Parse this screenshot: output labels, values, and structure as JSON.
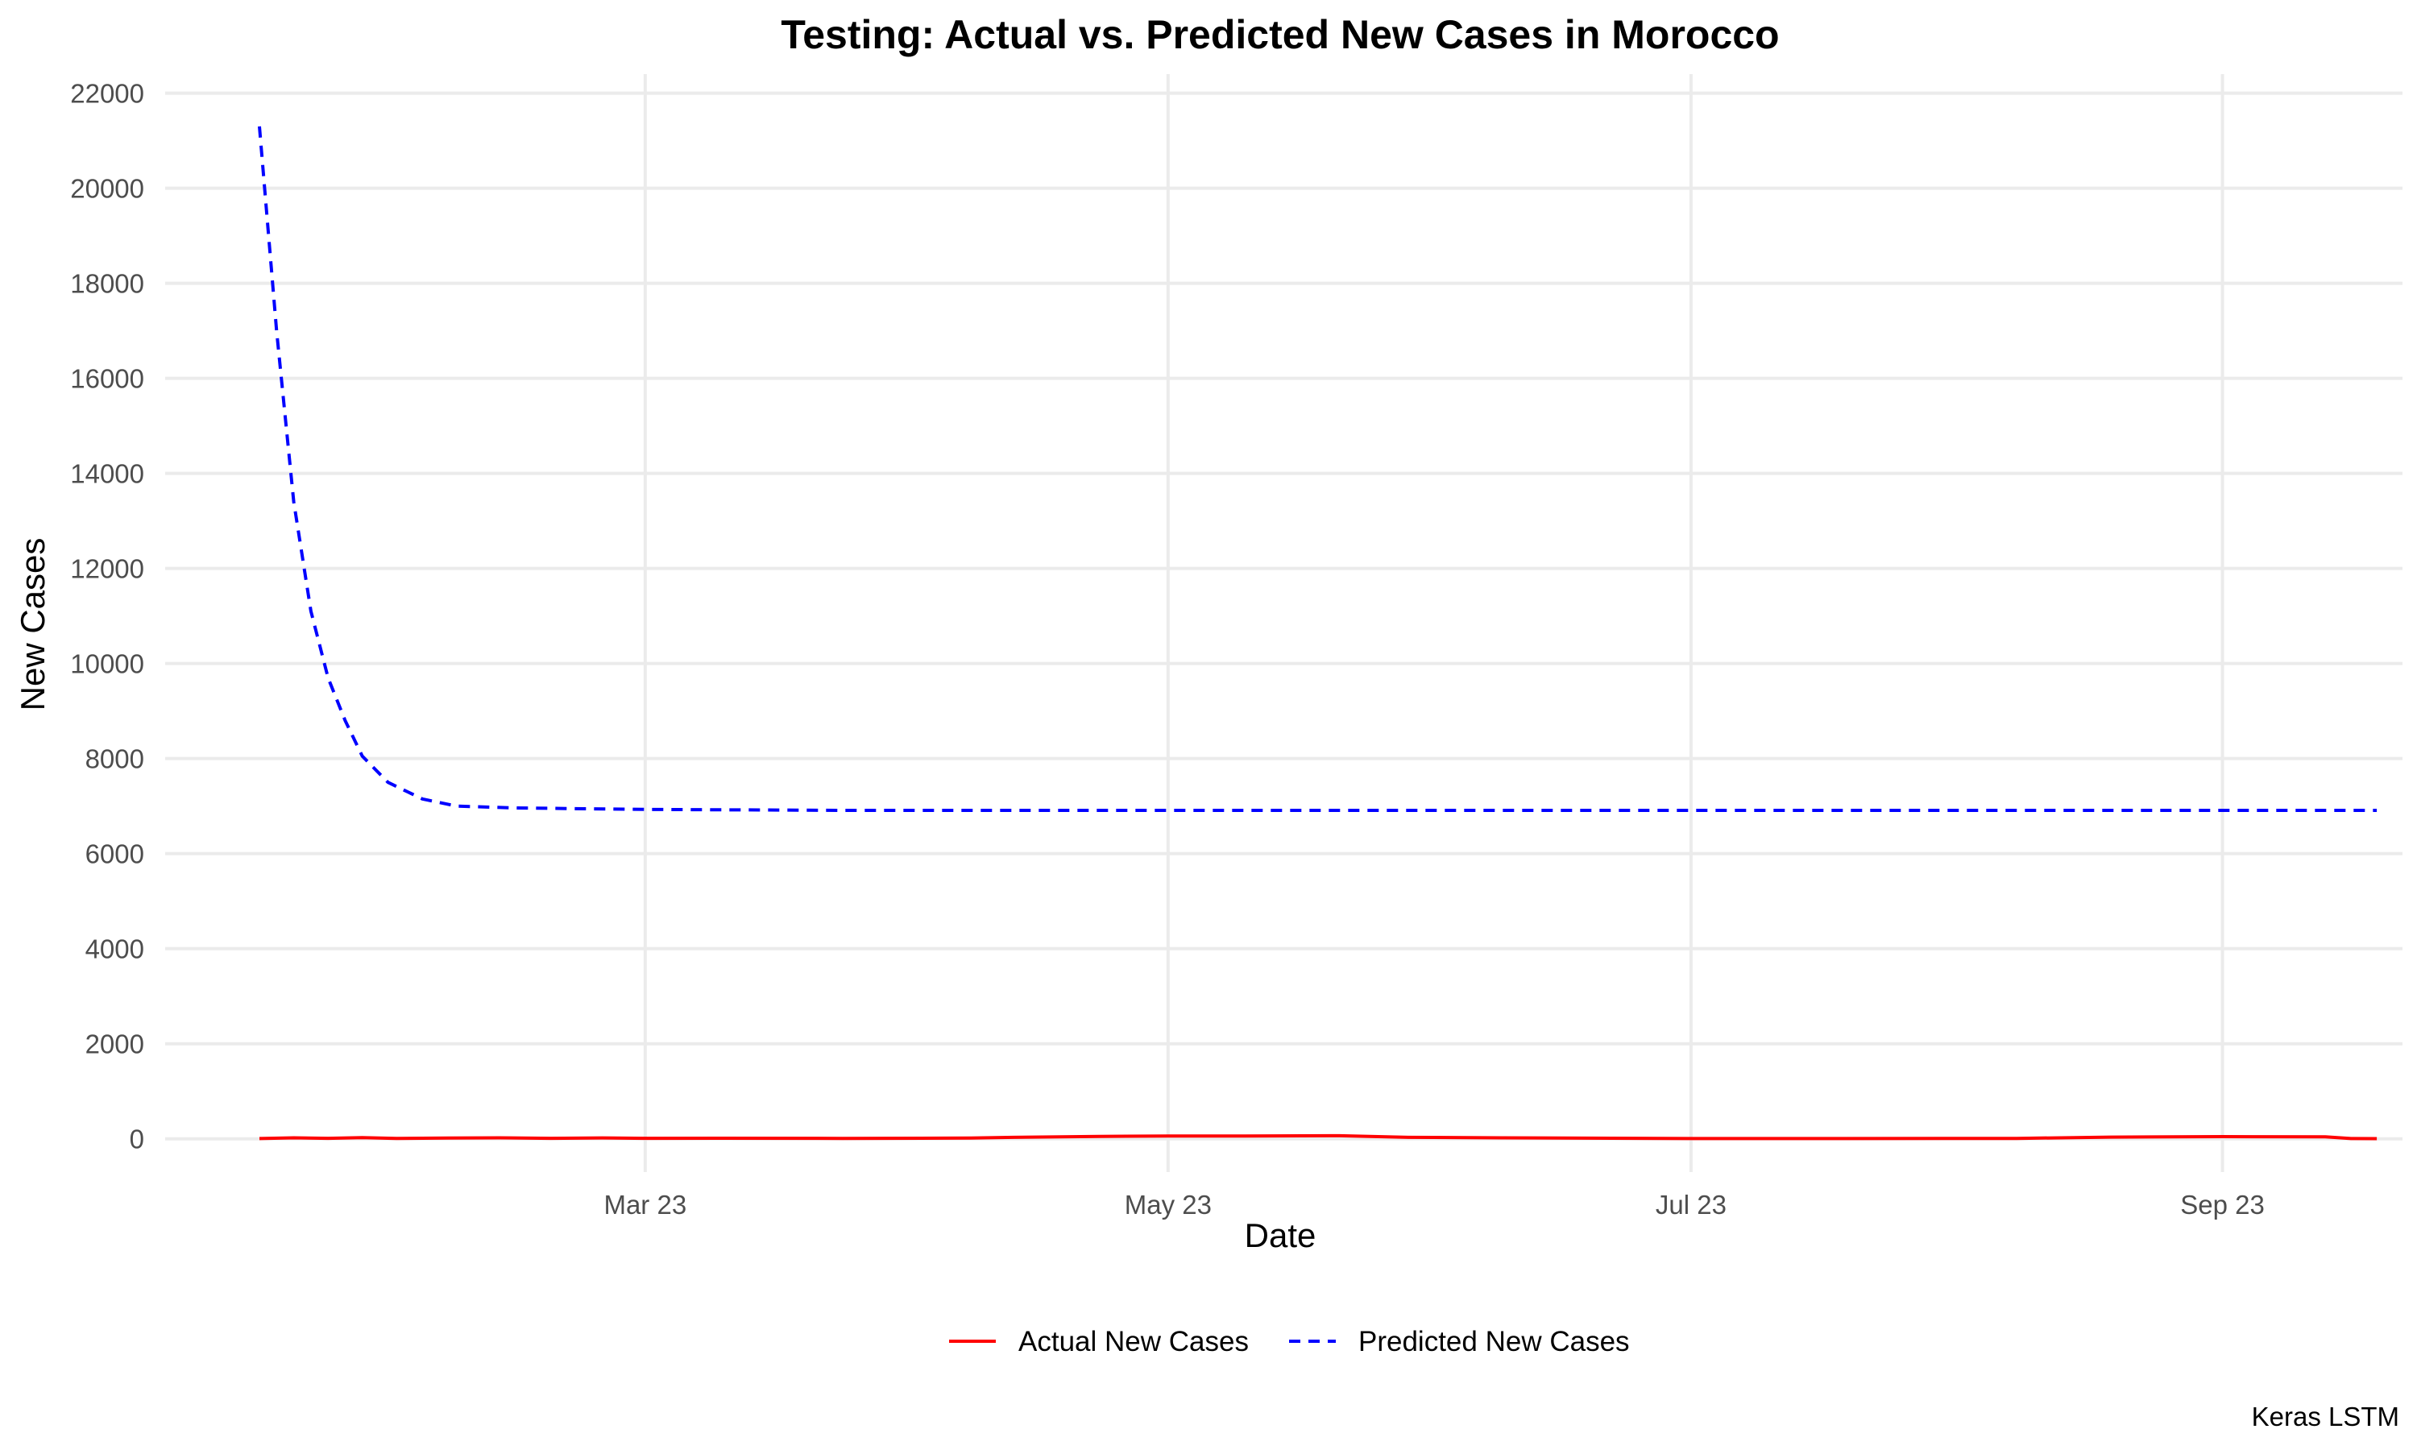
{
  "chart_data": {
    "type": "line",
    "title": "Testing: Actual vs. Predicted New Cases in Morocco",
    "xlabel": "Date",
    "ylabel": "New Cases",
    "caption": "Keras LSTM",
    "x_type": "date",
    "xlim": [
      "2023-01-26",
      "2023-10-14"
    ],
    "ylim": [
      -700,
      22400
    ],
    "x_ticks": [
      {
        "date": "2023-03-23",
        "label": "Mar 23"
      },
      {
        "date": "2023-05-23",
        "label": "May 23"
      },
      {
        "date": "2023-07-23",
        "label": "Jul 23"
      },
      {
        "date": "2023-09-23",
        "label": "Sep 23"
      }
    ],
    "y_ticks": [
      0,
      2000,
      4000,
      6000,
      8000,
      10000,
      12000,
      14000,
      16000,
      18000,
      20000,
      22000
    ],
    "grid": true,
    "legend_position": "bottom",
    "series": [
      {
        "name": "Actual New Cases",
        "color": "#ff0000",
        "dash": "solid",
        "points": [
          [
            "2023-02-06",
            5
          ],
          [
            "2023-02-10",
            20
          ],
          [
            "2023-02-14",
            10
          ],
          [
            "2023-02-18",
            25
          ],
          [
            "2023-02-22",
            8
          ],
          [
            "2023-02-28",
            15
          ],
          [
            "2023-03-06",
            20
          ],
          [
            "2023-03-12",
            10
          ],
          [
            "2023-03-18",
            18
          ],
          [
            "2023-03-23",
            10
          ],
          [
            "2023-04-01",
            12
          ],
          [
            "2023-04-15",
            8
          ],
          [
            "2023-04-30",
            15
          ],
          [
            "2023-05-05",
            30
          ],
          [
            "2023-05-15",
            50
          ],
          [
            "2023-05-23",
            60
          ],
          [
            "2023-06-01",
            60
          ],
          [
            "2023-06-12",
            65
          ],
          [
            "2023-06-20",
            30
          ],
          [
            "2023-07-01",
            20
          ],
          [
            "2023-07-23",
            5
          ],
          [
            "2023-08-10",
            5
          ],
          [
            "2023-08-30",
            8
          ],
          [
            "2023-09-10",
            35
          ],
          [
            "2023-09-23",
            45
          ],
          [
            "2023-10-05",
            40
          ],
          [
            "2023-10-08",
            5
          ],
          [
            "2023-10-11",
            3
          ]
        ]
      },
      {
        "name": "Predicted New Cases",
        "color": "#0000ff",
        "dash": "dashed",
        "points": [
          [
            "2023-02-06",
            21300
          ],
          [
            "2023-02-08",
            17000
          ],
          [
            "2023-02-10",
            13400
          ],
          [
            "2023-02-12",
            11100
          ],
          [
            "2023-02-14",
            9700
          ],
          [
            "2023-02-16",
            8800
          ],
          [
            "2023-02-18",
            8050
          ],
          [
            "2023-02-21",
            7500
          ],
          [
            "2023-02-25",
            7150
          ],
          [
            "2023-03-01",
            7000
          ],
          [
            "2023-03-08",
            6960
          ],
          [
            "2023-03-23",
            6930
          ],
          [
            "2023-04-15",
            6910
          ],
          [
            "2023-05-23",
            6910
          ],
          [
            "2023-07-23",
            6910
          ],
          [
            "2023-09-23",
            6910
          ],
          [
            "2023-10-11",
            6910
          ]
        ]
      }
    ]
  }
}
